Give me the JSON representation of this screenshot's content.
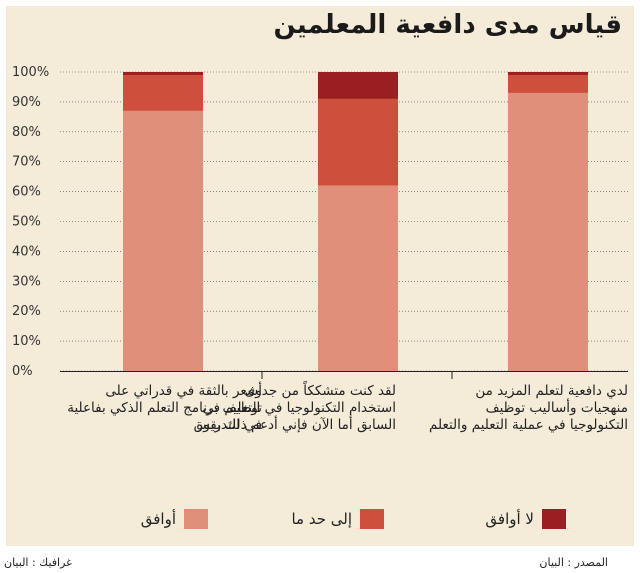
{
  "title": "قياس مدى دافعية المعلمين",
  "colors": {
    "agree": "#e0907a",
    "somewhat": "#cf4f3d",
    "disagree": "#9b1e22",
    "panel": "#f4ecd9",
    "grid": "#000000"
  },
  "legend": {
    "disagree": "لا أوافق",
    "somewhat": "إلى حد ما",
    "agree": "أوافق"
  },
  "footer": {
    "source": "المصدر : البيان",
    "graphics": "غرافيك : البيان"
  },
  "categories": [
    "لدي دافعية لتعلم المزيد من منهجيات وأساليب توظيف التكنولوجيا في عملية التعليم والتعلم",
    "لقد كنت متشككاً من جدوى استخدام التكنولوجيا في التعليم في السابق أما الآن فإني أدعم ذلك بقوة",
    "أشعر بالثقة في قدراتي على توظيف برنامج التعلم الذكي بفاعلية في التدريس"
  ],
  "chart_data": {
    "type": "bar",
    "stacked": true,
    "title": "قياس مدى دافعية المعلمين",
    "categories": [
      "لدي دافعية لتعلم المزيد من منهجيات وأساليب توظيف التكنولوجيا في عملية التعليم والتعلم",
      "لقد كنت متشككاً من جدوى استخدام التكنولوجيا في التعليم في السابق أما الآن فإني أدعم ذلك بقوة",
      "أشعر بالثقة في قدراتي على توظيف برنامج التعلم الذكي بفاعلية في التدريس"
    ],
    "series": [
      {
        "name": "أوافق",
        "values": [
          93,
          62,
          87
        ]
      },
      {
        "name": "إلى حد ما",
        "values": [
          6,
          29,
          12
        ]
      },
      {
        "name": "لا أوافق",
        "values": [
          1,
          9,
          1
        ]
      }
    ],
    "yticks": [
      "0%",
      "10%",
      "20%",
      "30%",
      "40%",
      "50%",
      "60%",
      "70%",
      "80%",
      "90%",
      "100%"
    ],
    "ylim": [
      0,
      100
    ],
    "legend_position": "bottom"
  }
}
